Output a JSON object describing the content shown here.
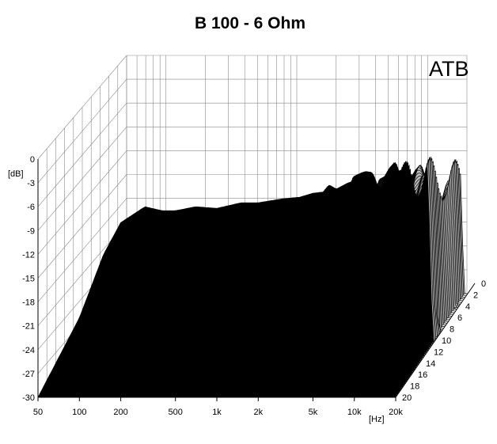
{
  "chart_data": {
    "type": "waterfall-3d",
    "title": "B 100 - 6 Ohm",
    "brand": "ATB",
    "y_axis": {
      "label": "[dB]",
      "ticks": [
        "0",
        "-3",
        "-6",
        "-9",
        "-12",
        "-15",
        "-18",
        "-21",
        "-24",
        "-27",
        "-30"
      ],
      "range": [
        -30,
        0
      ]
    },
    "x_axis": {
      "label": "[Hz]",
      "scale": "log",
      "ticks": [
        "50",
        "100",
        "200",
        "500",
        "1k",
        "2k",
        "5k",
        "10k",
        "20k"
      ],
      "tick_values": [
        50,
        100,
        200,
        500,
        1000,
        2000,
        5000,
        10000,
        20000
      ],
      "range": [
        50,
        20000
      ]
    },
    "z_axis": {
      "ticks": [
        "0",
        "2",
        "4",
        "6",
        "8",
        "10",
        "12",
        "14",
        "16",
        "18",
        "20"
      ],
      "range": [
        0,
        20
      ]
    },
    "series": [
      {
        "slice": 0,
        "x": [
          50,
          100,
          150,
          200,
          300,
          400,
          500,
          700,
          1000,
          1500,
          2000,
          3000,
          4000,
          5000,
          7000,
          9000,
          11000,
          12500,
          14000,
          16000,
          18000,
          20000
        ],
        "y": [
          -30,
          -20,
          -12,
          -8,
          -6,
          -6.5,
          -6.5,
          -6,
          -6.2,
          -5.5,
          -5.5,
          -5,
          -4.8,
          -4.3,
          -4,
          -3,
          -2.5,
          -4,
          -3.5,
          -4.5,
          -1.5,
          -30
        ]
      }
    ],
    "grid": true
  }
}
